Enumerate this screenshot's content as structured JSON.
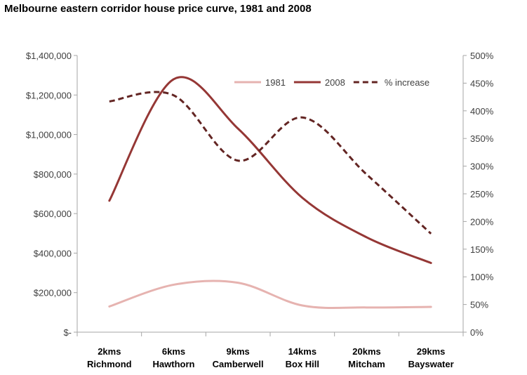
{
  "title": "Melbourne eastern corridor house price curve, 1981 and 2008",
  "chart_data": {
    "type": "line",
    "title": "Melbourne eastern corridor house price curve, 1981 and 2008",
    "categories": [
      [
        "2kms",
        "Richmond"
      ],
      [
        "6kms",
        "Hawthorn"
      ],
      [
        "9kms",
        "Camberwell"
      ],
      [
        "14kms",
        "Box Hill"
      ],
      [
        "20kms",
        "Mitcham"
      ],
      [
        "29kms",
        "Bayswater"
      ]
    ],
    "y_left": {
      "ylim": [
        0,
        1400000
      ],
      "ticks": [
        0,
        200000,
        400000,
        600000,
        800000,
        1000000,
        1200000,
        1400000
      ],
      "tick_labels": [
        "$-",
        "$200,000",
        "$400,000",
        "$600,000",
        "$800,000",
        "$1,000,000",
        "$1,200,000",
        "$1,400,000"
      ]
    },
    "y_right": {
      "ylim": [
        0,
        500
      ],
      "ticks": [
        0,
        50,
        100,
        150,
        200,
        250,
        300,
        350,
        400,
        450,
        500
      ],
      "tick_labels": [
        "0%",
        "50%",
        "100%",
        "150%",
        "200%",
        "250%",
        "300%",
        "350%",
        "400%",
        "450%",
        "500%"
      ]
    },
    "series": [
      {
        "name": "1981",
        "axis": "left",
        "color": "#e6b3b0",
        "style": "solid",
        "values": [
          130000,
          240000,
          250000,
          135000,
          125000,
          128000
        ]
      },
      {
        "name": "2008",
        "axis": "left",
        "color": "#953735",
        "style": "solid",
        "values": [
          665000,
          1280000,
          1030000,
          680000,
          480000,
          350000
        ]
      },
      {
        "name": "% increase",
        "axis": "right",
        "color": "#632523",
        "style": "dashed",
        "values": [
          417,
          428,
          310,
          388,
          285,
          178
        ]
      }
    ],
    "legend": {
      "position": "top-right"
    },
    "grid": false
  }
}
